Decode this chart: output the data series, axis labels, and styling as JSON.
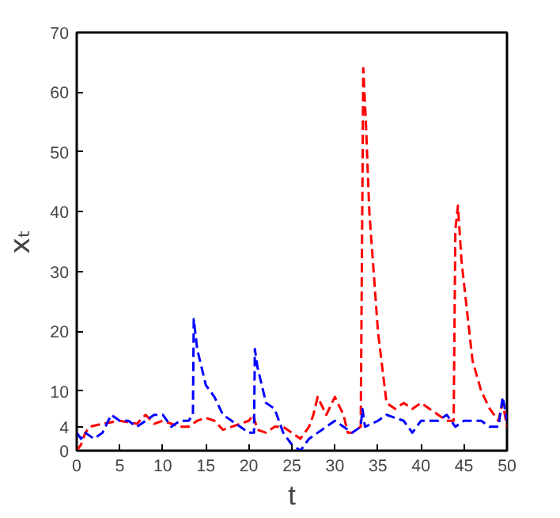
{
  "chart_data": {
    "type": "line",
    "xlabel": "t",
    "ylabel": "xₜ",
    "xlim": [
      0,
      50
    ],
    "ylim": [
      0,
      70
    ],
    "xticks": [
      0,
      5,
      10,
      15,
      20,
      25,
      30,
      35,
      40,
      45,
      50
    ],
    "yticks": [
      0,
      4,
      10,
      20,
      30,
      40,
      50,
      60,
      70
    ],
    "grid": false,
    "line_style": "dashed",
    "marker": "none",
    "series": [
      {
        "color": "#ff0000",
        "x": [
          0,
          0.5,
          1,
          1.5,
          3,
          5,
          7,
          8,
          9,
          10,
          12,
          13,
          14,
          15,
          16,
          17,
          18,
          19,
          20,
          20.5,
          21,
          22,
          23,
          24,
          25,
          26,
          27,
          27.5,
          28,
          29,
          30,
          31,
          31.5,
          32,
          33,
          33.3,
          33.6,
          34,
          35,
          36,
          37,
          38,
          39,
          40,
          41,
          42,
          43,
          43.8,
          44,
          44.3,
          44.7,
          45,
          46,
          47,
          48,
          49,
          49.5,
          50
        ],
        "values": [
          0,
          1,
          3,
          4,
          4.5,
          5,
          4.5,
          6,
          4.5,
          5,
          4,
          4,
          5,
          5.5,
          5,
          3.5,
          4,
          4.5,
          5,
          6,
          3.5,
          3,
          4,
          4,
          3,
          2,
          4,
          6,
          9,
          6,
          9,
          6,
          3,
          3,
          4,
          64,
          55,
          40,
          20,
          8,
          7,
          8,
          7,
          8,
          7,
          6,
          5,
          5,
          37,
          41,
          32,
          28,
          15,
          10,
          7,
          5,
          8,
          4
        ]
      },
      {
        "color": "#0000ff",
        "x": [
          0,
          0.5,
          1,
          2,
          3,
          4,
          5,
          6,
          7,
          8,
          9,
          10,
          11,
          12,
          13,
          13.5,
          13.6,
          14,
          15,
          16,
          17,
          18,
          19,
          20,
          20.6,
          20.7,
          21,
          22,
          23,
          24,
          25,
          26,
          27,
          28,
          29,
          30,
          31,
          32,
          33,
          33.2,
          33.5,
          35,
          36,
          38,
          39,
          40,
          42,
          43,
          44,
          45,
          47,
          48,
          49,
          49.5,
          50
        ],
        "values": [
          3,
          2,
          3,
          2,
          3,
          6,
          5,
          5,
          4,
          5,
          6,
          6,
          4,
          5,
          5,
          6,
          22,
          17,
          11,
          9,
          6,
          5,
          4,
          3,
          3,
          17,
          14,
          8,
          7,
          3,
          1,
          0,
          2,
          3,
          4,
          5,
          4,
          3,
          4,
          7,
          4,
          5,
          6,
          5,
          3,
          5,
          5,
          6,
          4,
          5,
          5,
          4,
          4,
          9,
          5
        ]
      }
    ]
  }
}
